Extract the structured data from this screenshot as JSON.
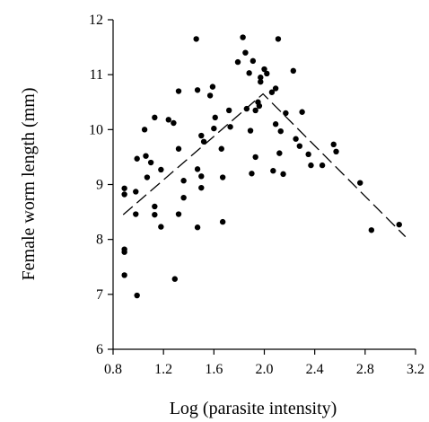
{
  "chart_data": {
    "type": "scatter",
    "xlabel": "Log (parasite intensity)",
    "ylabel": "Female worm length (mm)",
    "xlim": [
      0.8,
      3.2
    ],
    "ylim": [
      6,
      12
    ],
    "x_ticks": [
      "0.8",
      "1.2",
      "1.6",
      "2.0",
      "2.4",
      "2.8",
      "3.2"
    ],
    "y_ticks": [
      "6",
      "7",
      "8",
      "9",
      "10",
      "11",
      "12"
    ],
    "grid": false,
    "legend": "none",
    "colors": {
      "points": "#000000",
      "line": "#000000",
      "axes": "#000000"
    },
    "series": [
      {
        "mode": "markers",
        "points": [
          [
            0.89,
            8.93
          ],
          [
            0.89,
            8.82
          ],
          [
            0.89,
            7.82
          ],
          [
            0.89,
            7.77
          ],
          [
            0.89,
            7.35
          ],
          [
            0.98,
            8.87
          ],
          [
            0.98,
            8.46
          ],
          [
            0.99,
            6.98
          ],
          [
            0.99,
            9.47
          ],
          [
            1.05,
            10.0
          ],
          [
            1.06,
            9.52
          ],
          [
            1.07,
            9.13
          ],
          [
            1.1,
            9.4
          ],
          [
            1.13,
            10.22
          ],
          [
            1.13,
            8.6
          ],
          [
            1.13,
            8.45
          ],
          [
            1.18,
            9.27
          ],
          [
            1.18,
            8.23
          ],
          [
            1.24,
            10.18
          ],
          [
            1.28,
            10.12
          ],
          [
            1.29,
            7.28
          ],
          [
            1.32,
            10.7
          ],
          [
            1.32,
            9.65
          ],
          [
            1.32,
            8.46
          ],
          [
            1.36,
            9.07
          ],
          [
            1.36,
            8.76
          ],
          [
            1.46,
            11.65
          ],
          [
            1.47,
            10.72
          ],
          [
            1.47,
            9.28
          ],
          [
            1.47,
            8.22
          ],
          [
            1.5,
            9.89
          ],
          [
            1.5,
            9.15
          ],
          [
            1.5,
            8.94
          ],
          [
            1.52,
            9.78
          ],
          [
            1.57,
            10.62
          ],
          [
            1.59,
            10.78
          ],
          [
            1.6,
            10.02
          ],
          [
            1.61,
            10.22
          ],
          [
            1.66,
            9.65
          ],
          [
            1.67,
            9.13
          ],
          [
            1.67,
            8.32
          ],
          [
            1.72,
            10.35
          ],
          [
            1.73,
            10.05
          ],
          [
            1.79,
            11.23
          ],
          [
            1.83,
            11.68
          ],
          [
            1.85,
            11.4
          ],
          [
            1.86,
            10.38
          ],
          [
            1.88,
            11.03
          ],
          [
            1.89,
            9.98
          ],
          [
            1.9,
            9.2
          ],
          [
            1.91,
            11.25
          ],
          [
            1.93,
            10.35
          ],
          [
            1.93,
            9.5
          ],
          [
            1.95,
            10.5
          ],
          [
            1.96,
            10.43
          ],
          [
            1.97,
            10.95
          ],
          [
            1.97,
            10.87
          ],
          [
            2.0,
            11.1
          ],
          [
            2.02,
            11.02
          ],
          [
            2.06,
            10.68
          ],
          [
            2.07,
            9.25
          ],
          [
            2.09,
            10.75
          ],
          [
            2.09,
            10.1
          ],
          [
            2.11,
            11.65
          ],
          [
            2.12,
            9.57
          ],
          [
            2.13,
            9.97
          ],
          [
            2.15,
            9.19
          ],
          [
            2.17,
            10.3
          ],
          [
            2.23,
            11.07
          ],
          [
            2.25,
            9.83
          ],
          [
            2.28,
            9.7
          ],
          [
            2.3,
            10.32
          ],
          [
            2.35,
            9.55
          ],
          [
            2.37,
            9.35
          ],
          [
            2.46,
            9.35
          ],
          [
            2.55,
            9.73
          ],
          [
            2.57,
            9.6
          ],
          [
            2.76,
            9.03
          ],
          [
            2.85,
            8.17
          ],
          [
            3.07,
            8.27
          ]
        ]
      },
      {
        "mode": "dashed-line",
        "points": [
          [
            0.88,
            8.45
          ],
          [
            1.99,
            10.65
          ],
          [
            3.12,
            8.05
          ]
        ]
      }
    ]
  }
}
